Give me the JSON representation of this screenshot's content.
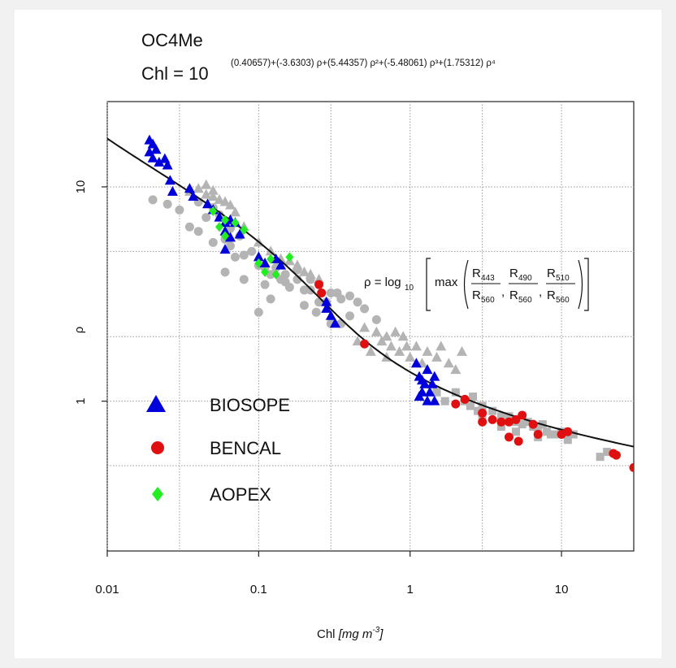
{
  "chart_data": {
    "type": "scatter",
    "title": "OC4Me",
    "formula": {
      "lhs": "Chl = 10",
      "exponent": "(0.40657)+(-3.6303) ρ+(5.44357) ρ²+(-5.48061) ρ³+(1.75312) ρ⁴",
      "coefficients": [
        0.40657,
        -3.6303,
        5.44357,
        -5.48061,
        1.75312
      ]
    },
    "ratio_label": {
      "lhs": "ρ = log",
      "base": "10",
      "max": "max",
      "fractions": [
        {
          "num": "R",
          "num_sub": "443",
          "den": "R",
          "den_sub": "560"
        },
        {
          "num": "R",
          "num_sub": "490",
          "den": "R",
          "den_sub": "560"
        },
        {
          "num": "R",
          "num_sub": "510",
          "den": "R",
          "den_sub": "560"
        }
      ]
    },
    "xlabel": {
      "prefix": "Chl ",
      "unit": "[mg m",
      "exp": "-3",
      "close": "]"
    },
    "ylabel": "ρ",
    "x_scale": "log",
    "y_scale": "log",
    "xlim": [
      0.01,
      30
    ],
    "ylim": [
      0.2,
      25
    ],
    "x_ticks": [
      {
        "value": 0.01,
        "label": "0.01"
      },
      {
        "value": 0.1,
        "label": "0.1"
      },
      {
        "value": 1,
        "label": "1"
      },
      {
        "value": 10,
        "label": "10"
      }
    ],
    "x_grid": [
      0.01,
      0.03,
      0.1,
      0.3,
      1,
      3,
      10
    ],
    "y_ticks": [
      {
        "value": 1,
        "label": "1"
      },
      {
        "value": 10,
        "label": "10"
      }
    ],
    "y_grid": [
      0.5,
      1,
      2,
      5,
      10
    ],
    "grid": true,
    "legend_position": "bottom-left",
    "series": [
      {
        "name": "",
        "color": "#b4b4b4",
        "marker": "circle",
        "points": [
          [
            0.02,
            8.7
          ],
          [
            0.025,
            8.3
          ],
          [
            0.03,
            7.8
          ],
          [
            0.035,
            6.5
          ],
          [
            0.04,
            6.2
          ],
          [
            0.045,
            7.2
          ],
          [
            0.05,
            5.5
          ],
          [
            0.06,
            5.7
          ],
          [
            0.065,
            5.3
          ],
          [
            0.07,
            4.7
          ],
          [
            0.08,
            4.8
          ],
          [
            0.09,
            5.0
          ],
          [
            0.1,
            4.3
          ],
          [
            0.11,
            4.2
          ],
          [
            0.12,
            3.9
          ],
          [
            0.13,
            4.2
          ],
          [
            0.14,
            3.7
          ],
          [
            0.15,
            3.6
          ],
          [
            0.16,
            3.4
          ],
          [
            0.18,
            4.1
          ],
          [
            0.2,
            3.3
          ],
          [
            0.22,
            3.3
          ],
          [
            0.25,
            2.9
          ],
          [
            0.3,
            3.2
          ],
          [
            0.35,
            3.0
          ],
          [
            0.4,
            3.1
          ],
          [
            0.45,
            2.9
          ],
          [
            0.5,
            2.7
          ],
          [
            0.6,
            2.4
          ],
          [
            0.12,
            3.0
          ],
          [
            0.1,
            2.6
          ],
          [
            0.24,
            2.6
          ],
          [
            0.4,
            2.5
          ],
          [
            0.3,
            2.3
          ],
          [
            0.08,
            3.7
          ],
          [
            0.06,
            4.0
          ],
          [
            0.11,
            3.5
          ],
          [
            0.2,
            2.8
          ],
          [
            0.04,
            8.5
          ],
          [
            0.05,
            8.0
          ],
          [
            0.055,
            7.4
          ],
          [
            0.065,
            6.4
          ],
          [
            0.075,
            5.9
          ],
          [
            0.15,
            3.9
          ],
          [
            0.18,
            3.7
          ],
          [
            0.22,
            3.7
          ],
          [
            0.33,
            3.2
          ],
          [
            0.28,
            2.9
          ],
          [
            0.35,
            2.3
          ]
        ]
      },
      {
        "name": "",
        "color": "#b4b4b4",
        "marker": "triangle",
        "points": [
          [
            0.035,
            9.5
          ],
          [
            0.04,
            9.8
          ],
          [
            0.045,
            9.2
          ],
          [
            0.05,
            9.0
          ],
          [
            0.055,
            8.7
          ],
          [
            0.06,
            8.5
          ],
          [
            0.065,
            8.2
          ],
          [
            0.07,
            7.6
          ],
          [
            0.08,
            6.5
          ],
          [
            0.1,
            5.5
          ],
          [
            0.12,
            5.0
          ],
          [
            0.14,
            4.6
          ],
          [
            0.16,
            4.5
          ],
          [
            0.18,
            4.3
          ],
          [
            0.2,
            4.0
          ],
          [
            0.22,
            3.9
          ],
          [
            0.25,
            3.7
          ],
          [
            0.6,
            2.1
          ],
          [
            0.65,
            1.9
          ],
          [
            0.7,
            2.0
          ],
          [
            0.75,
            1.8
          ],
          [
            0.8,
            2.1
          ],
          [
            0.85,
            1.7
          ],
          [
            0.9,
            2.0
          ],
          [
            0.95,
            1.8
          ],
          [
            1.0,
            1.6
          ],
          [
            1.1,
            1.8
          ],
          [
            1.3,
            1.7
          ],
          [
            1.5,
            1.6
          ],
          [
            1.6,
            1.8
          ],
          [
            1.8,
            1.5
          ],
          [
            2.0,
            1.4
          ],
          [
            2.2,
            1.7
          ],
          [
            0.55,
            1.7
          ],
          [
            0.5,
            2.2
          ],
          [
            0.45,
            1.9
          ],
          [
            1.2,
            1.5
          ],
          [
            0.7,
            1.6
          ],
          [
            0.05,
            9.6
          ],
          [
            0.045,
            10.2
          ]
        ]
      },
      {
        "name": "",
        "color": "#b4b4b4",
        "marker": "square",
        "points": [
          [
            1.5,
            1.1
          ],
          [
            1.7,
            1.0
          ],
          [
            2.0,
            1.1
          ],
          [
            2.3,
            1.0
          ],
          [
            2.5,
            0.95
          ],
          [
            2.8,
            0.9
          ],
          [
            3.0,
            0.95
          ],
          [
            3.5,
            0.9
          ],
          [
            4.0,
            0.85
          ],
          [
            4.5,
            0.85
          ],
          [
            5.0,
            0.8
          ],
          [
            5.5,
            0.78
          ],
          [
            6.0,
            0.8
          ],
          [
            6.5,
            0.76
          ],
          [
            7.0,
            0.75
          ],
          [
            7.5,
            0.78
          ],
          [
            8.0,
            0.72
          ],
          [
            8.5,
            0.7
          ],
          [
            9.0,
            0.7
          ],
          [
            10.0,
            0.72
          ],
          [
            11.0,
            0.66
          ],
          [
            12.0,
            0.7
          ],
          [
            20.0,
            0.58
          ],
          [
            18.0,
            0.55
          ],
          [
            5.0,
            0.72
          ],
          [
            4.0,
            0.76
          ],
          [
            3.0,
            0.85
          ],
          [
            2.6,
            1.05
          ],
          [
            7.0,
            0.68
          ]
        ]
      },
      {
        "name": "BIOSOPE",
        "color": "#0000dd",
        "marker": "triangle",
        "points": [
          [
            0.019,
            16.5
          ],
          [
            0.02,
            15.8
          ],
          [
            0.019,
            14.5
          ],
          [
            0.021,
            14.9
          ],
          [
            0.02,
            13.6
          ],
          [
            0.022,
            13.0
          ],
          [
            0.024,
            13.5
          ],
          [
            0.025,
            12.6
          ],
          [
            0.026,
            10.7
          ],
          [
            0.027,
            9.5
          ],
          [
            0.035,
            9.8
          ],
          [
            0.037,
            9.0
          ],
          [
            0.046,
            8.3
          ],
          [
            0.05,
            7.8
          ],
          [
            0.055,
            7.2
          ],
          [
            0.06,
            6.8
          ],
          [
            0.065,
            7.0
          ],
          [
            0.07,
            6.8
          ],
          [
            0.06,
            6.2
          ],
          [
            0.065,
            5.8
          ],
          [
            0.075,
            6.0
          ],
          [
            0.06,
            5.1
          ],
          [
            0.1,
            4.7
          ],
          [
            0.11,
            4.4
          ],
          [
            0.13,
            4.6
          ],
          [
            0.14,
            4.3
          ],
          [
            0.28,
            2.9
          ],
          [
            0.28,
            2.7
          ],
          [
            0.3,
            2.5
          ],
          [
            0.32,
            2.3
          ],
          [
            1.1,
            1.5
          ],
          [
            1.15,
            1.3
          ],
          [
            1.2,
            1.25
          ],
          [
            1.25,
            1.2
          ],
          [
            1.3,
            1.4
          ],
          [
            1.35,
            1.1
          ],
          [
            1.4,
            1.2
          ],
          [
            1.45,
            1.3
          ],
          [
            1.2,
            1.1
          ],
          [
            1.3,
            1.0
          ],
          [
            1.45,
            1.0
          ],
          [
            1.15,
            1.05
          ]
        ]
      },
      {
        "name": "BENCAL",
        "color": "#e01010",
        "marker": "circle",
        "points": [
          [
            0.25,
            3.5
          ],
          [
            0.26,
            3.2
          ],
          [
            0.5,
            1.85
          ],
          [
            2.0,
            0.97
          ],
          [
            2.3,
            1.02
          ],
          [
            3.0,
            0.88
          ],
          [
            3.0,
            0.8
          ],
          [
            3.5,
            0.82
          ],
          [
            4.0,
            0.8
          ],
          [
            4.5,
            0.8
          ],
          [
            5.0,
            0.82
          ],
          [
            5.5,
            0.86
          ],
          [
            6.5,
            0.78
          ],
          [
            4.5,
            0.68
          ],
          [
            5.2,
            0.65
          ],
          [
            7.0,
            0.7
          ],
          [
            10.0,
            0.7
          ],
          [
            11.0,
            0.72
          ],
          [
            22.0,
            0.57
          ],
          [
            23.0,
            0.56
          ],
          [
            30.0,
            0.49
          ]
        ]
      },
      {
        "name": "AOPEX",
        "color": "#22ee22",
        "marker": "diamond",
        "points": [
          [
            0.05,
            7.7
          ],
          [
            0.055,
            6.5
          ],
          [
            0.06,
            7.0
          ],
          [
            0.07,
            6.8
          ],
          [
            0.08,
            6.3
          ],
          [
            0.1,
            4.4
          ],
          [
            0.11,
            4.0
          ],
          [
            0.12,
            4.6
          ],
          [
            0.16,
            4.7
          ],
          [
            0.13,
            3.9
          ],
          [
            0.06,
            5.9
          ]
        ]
      }
    ]
  }
}
